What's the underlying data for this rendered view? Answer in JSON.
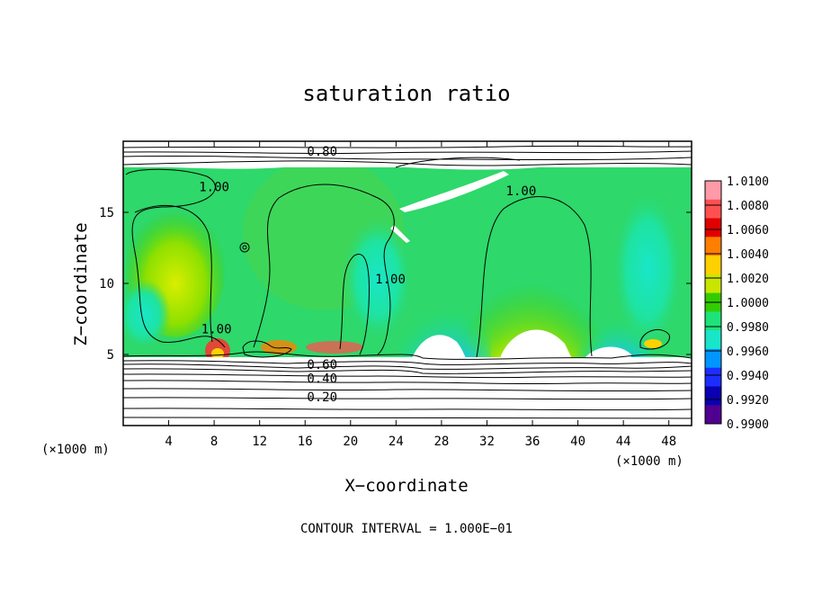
{
  "chart_data": {
    "type": "heatmap",
    "title": "saturation ratio",
    "xlabel": "X−coordinate",
    "ylabel": "Z−coordinate",
    "x_unit_label": "(×1000 m)",
    "z_unit_label": "(×1000 m)",
    "xlim": [
      0,
      50
    ],
    "ylim": [
      0,
      20
    ],
    "x_ticks": [
      4,
      8,
      12,
      16,
      20,
      24,
      28,
      32,
      36,
      40,
      44,
      48
    ],
    "y_ticks": [
      5,
      10,
      15
    ],
    "grid": false,
    "colorbar": {
      "placement": "right",
      "labels": [
        "1.0100",
        "1.0080",
        "1.0060",
        "1.0040",
        "1.0020",
        "1.0000",
        "0.9980",
        "0.9960",
        "0.9940",
        "0.9920",
        "0.9900"
      ],
      "colors": [
        "#ff9aa8",
        "#ff5050",
        "#e00000",
        "#ff7f00",
        "#ffd000",
        "#c8e600",
        "#33cc00",
        "#1ee37a",
        "#19e6c8",
        "#0096ff",
        "#1c2eff",
        "#0a00b0",
        "#500090"
      ]
    },
    "contour_interval_text": "CONTOUR INTERVAL = 1.000E−01",
    "contour_labels": [
      {
        "text": "0.80",
        "x": 17.5,
        "z": 19.0
      },
      {
        "text": "1.00",
        "x": 8.0,
        "z": 16.5
      },
      {
        "text": "1.00",
        "x": 35.0,
        "z": 16.2
      },
      {
        "text": "1.00",
        "x": 23.5,
        "z": 10.0
      },
      {
        "text": "1.00",
        "x": 8.2,
        "z": 6.5
      },
      {
        "text": "0.60",
        "x": 17.5,
        "z": 4.0
      },
      {
        "text": "0.40",
        "x": 17.5,
        "z": 3.0
      },
      {
        "text": "0.20",
        "x": 17.5,
        "z": 1.7
      }
    ]
  }
}
